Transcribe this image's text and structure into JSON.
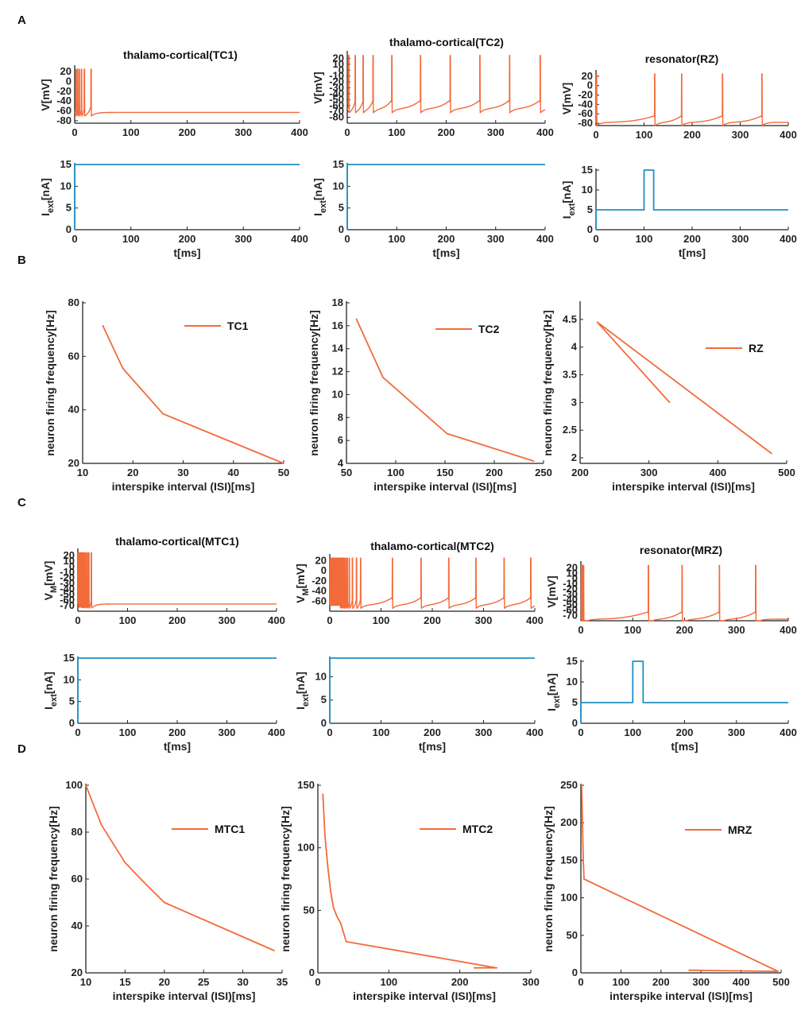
{
  "panel_labels": [
    "A",
    "B",
    "C",
    "D"
  ],
  "colors": {
    "voltage": "#f26b3a",
    "current": "#1f8fc4",
    "axis": "#222222"
  },
  "chart_data": [
    {
      "id": "A-V1",
      "type": "line",
      "title": "thalamo-cortical(TC1)",
      "ylabel": "V[mV]",
      "xlabel": "",
      "xlim": [
        0,
        400
      ],
      "ylim": [
        -85,
        30
      ],
      "xticks": [
        0,
        100,
        200,
        300,
        400
      ],
      "yticks": [
        20,
        0,
        -20,
        -40,
        -60,
        -80
      ],
      "spike_times": [
        2,
        5,
        8,
        12,
        17,
        29
      ],
      "rest_mV": -63
    },
    {
      "id": "A-V2",
      "type": "line",
      "title": "thalamo-cortical(TC2)",
      "ylabel": "V[mV]",
      "xlabel": "",
      "xlim": [
        0,
        400
      ],
      "ylim": [
        -90,
        30
      ],
      "xticks": [
        0,
        100,
        200,
        300,
        400
      ],
      "yticks": [
        20,
        10,
        0,
        -10,
        -20,
        -30,
        -40,
        -50,
        -60,
        -70,
        -80
      ],
      "spike_times": [
        3,
        16,
        32,
        52,
        90,
        148,
        208,
        268,
        328,
        390
      ],
      "rest_mV": -65
    },
    {
      "id": "A-V3",
      "type": "line",
      "title": "resonator(RZ)",
      "ylabel": "V[mV]",
      "xlabel": "",
      "xlim": [
        0,
        400
      ],
      "ylim": [
        -85,
        30
      ],
      "xticks": [
        0,
        100,
        200,
        300,
        400
      ],
      "yticks": [
        20,
        0,
        -20,
        -40,
        -60,
        -80
      ],
      "spike_times": [
        1,
        122,
        178,
        263,
        345
      ],
      "rest_mV": -78
    },
    {
      "id": "A-I1",
      "type": "line",
      "title": "",
      "ylabel": "Iext[nA]",
      "xlabel": "t[ms]",
      "xlim": [
        0,
        400
      ],
      "ylim": [
        0,
        15
      ],
      "xticks": [
        0,
        100,
        200,
        300,
        400
      ],
      "yticks": [
        0,
        5,
        10,
        15
      ],
      "x": [
        0,
        0,
        400
      ],
      "y": [
        0,
        15,
        15
      ]
    },
    {
      "id": "A-I2",
      "type": "line",
      "title": "",
      "ylabel": "Iext[nA]",
      "xlabel": "t[ms]",
      "xlim": [
        0,
        400
      ],
      "ylim": [
        0,
        15
      ],
      "xticks": [
        0,
        100,
        200,
        300,
        400
      ],
      "yticks": [
        0,
        5,
        10,
        15
      ],
      "x": [
        0,
        0,
        400
      ],
      "y": [
        0,
        15,
        15
      ]
    },
    {
      "id": "A-I3",
      "type": "line",
      "title": "",
      "ylabel": "Iext[nA]",
      "xlabel": "t[ms]",
      "xlim": [
        0,
        400
      ],
      "ylim": [
        0,
        15
      ],
      "xticks": [
        0,
        100,
        200,
        300,
        400
      ],
      "yticks": [
        0,
        5,
        10,
        15
      ],
      "x": [
        0,
        0,
        100,
        100,
        120,
        120,
        400
      ],
      "y": [
        0,
        5,
        5,
        15,
        15,
        5,
        5
      ]
    },
    {
      "id": "B1",
      "type": "line",
      "title": "",
      "ylabel": "neuron firing frequency[Hz]",
      "xlabel": "interspike interval (ISI)[ms]",
      "xlim": [
        10,
        50
      ],
      "ylim": [
        20,
        80
      ],
      "xticks": [
        10,
        20,
        30,
        40,
        50
      ],
      "yticks": [
        20,
        40,
        60,
        80
      ],
      "legend": "TC1",
      "x": [
        14,
        18,
        26,
        50
      ],
      "y": [
        71.5,
        55.5,
        38.5,
        20
      ]
    },
    {
      "id": "B2",
      "type": "line",
      "title": "",
      "ylabel": "neuron firing frequency[Hz]",
      "xlabel": "interspike interval (ISI)[ms]",
      "xlim": [
        50,
        250
      ],
      "ylim": [
        4,
        18
      ],
      "xticks": [
        50,
        100,
        150,
        200,
        250
      ],
      "yticks": [
        4,
        6,
        8,
        10,
        12,
        14,
        16,
        18
      ],
      "legend": "TC2",
      "x": [
        60,
        87,
        152,
        240
      ],
      "y": [
        16.6,
        11.5,
        6.6,
        4.2
      ]
    },
    {
      "id": "B3",
      "type": "line",
      "title": "",
      "ylabel": "neuron firing frequency[Hz]",
      "xlabel": "interspike interval (ISI)[ms]",
      "xlim": [
        200,
        500
      ],
      "ylim": [
        1.9,
        4.8
      ],
      "xticks": [
        200,
        300,
        400,
        500
      ],
      "yticks": [
        2,
        2.5,
        3,
        3.5,
        4,
        4.5
      ],
      "legend": "RZ",
      "x": [
        330,
        225,
        478
      ],
      "y": [
        3.0,
        4.45,
        2.08
      ]
    },
    {
      "id": "C-V1",
      "type": "line",
      "title": "thalamo-cortical(MTC1)",
      "ylabel": "VM[mV]",
      "xlabel": "",
      "xlim": [
        0,
        400
      ],
      "ylim": [
        -80,
        30
      ],
      "xticks": [
        0,
        100,
        200,
        300,
        400
      ],
      "yticks": [
        20,
        10,
        0,
        -10,
        -20,
        -30,
        -40,
        -50,
        -60,
        -70
      ],
      "spike_times": [
        1,
        2.5,
        4,
        5.5,
        7,
        9,
        11,
        13,
        16,
        19,
        22,
        27
      ],
      "rest_mV": -67
    },
    {
      "id": "C-V2",
      "type": "line",
      "title": "thalamo-cortical(MTC2)",
      "ylabel": "VM[mV]",
      "xlabel": "",
      "xlim": [
        0,
        400
      ],
      "ylim": [
        -80,
        30
      ],
      "xticks": [
        0,
        100,
        200,
        300,
        400
      ],
      "yticks": [
        20,
        0,
        -20,
        -40,
        -60
      ],
      "spike_times": [
        1,
        2,
        3,
        4,
        5,
        6,
        7,
        8,
        9,
        10,
        11,
        12,
        13,
        14,
        15,
        16,
        17,
        18,
        19,
        20,
        22,
        24,
        26,
        28,
        31,
        34,
        38,
        44,
        52,
        60,
        122,
        178,
        232,
        285,
        340,
        392
      ],
      "rest_mV": -67
    },
    {
      "id": "C-V3",
      "type": "line",
      "title": "resonator(MRZ)",
      "ylabel": "V[mV]",
      "xlabel": "",
      "xlim": [
        0,
        400
      ],
      "ylim": [
        -80,
        30
      ],
      "xticks": [
        0,
        100,
        200,
        300,
        400
      ],
      "yticks": [
        20,
        10,
        0,
        -10,
        -20,
        -30,
        -40,
        -50,
        -60,
        -70
      ],
      "spike_times": [
        1,
        3,
        5,
        130,
        195,
        267,
        337
      ],
      "rest_mV": -77
    },
    {
      "id": "C-I1",
      "type": "line",
      "title": "",
      "ylabel": "Iext[nA]",
      "xlabel": "t[ms]",
      "xlim": [
        0,
        400
      ],
      "ylim": [
        0,
        15
      ],
      "xticks": [
        0,
        100,
        200,
        300,
        400
      ],
      "yticks": [
        0,
        5,
        10,
        15
      ],
      "x": [
        0,
        0,
        400
      ],
      "y": [
        0,
        15,
        15
      ]
    },
    {
      "id": "C-I2",
      "type": "line",
      "title": "",
      "ylabel": "Iext[nA]",
      "xlabel": "t[ms]",
      "xlim": [
        0,
        400
      ],
      "ylim": [
        0,
        14
      ],
      "xticks": [
        0,
        100,
        200,
        300,
        400
      ],
      "yticks": [
        0,
        5,
        10
      ],
      "x": [
        0,
        0,
        400
      ],
      "y": [
        0,
        14,
        14
      ]
    },
    {
      "id": "C-I3",
      "type": "line",
      "title": "",
      "ylabel": "Iext[nA]",
      "xlabel": "t[ms]",
      "xlim": [
        0,
        400
      ],
      "ylim": [
        0,
        15
      ],
      "xticks": [
        0,
        100,
        200,
        300,
        400
      ],
      "yticks": [
        0,
        5,
        10,
        15
      ],
      "x": [
        0,
        0,
        100,
        100,
        120,
        120,
        400
      ],
      "y": [
        0,
        5,
        5,
        15,
        15,
        5,
        5
      ]
    },
    {
      "id": "D1",
      "type": "line",
      "title": "",
      "ylabel": "neuron firing frequency[Hz]",
      "xlabel": "interspike interval (ISI)[ms]",
      "xlim": [
        10,
        35
      ],
      "ylim": [
        20,
        100
      ],
      "xticks": [
        10,
        15,
        20,
        25,
        30,
        35
      ],
      "yticks": [
        20,
        40,
        60,
        80,
        100
      ],
      "legend": "MTC1",
      "x": [
        10,
        12,
        15,
        17,
        20,
        34
      ],
      "y": [
        100,
        83,
        67,
        60,
        50,
        29.5
      ]
    },
    {
      "id": "D2",
      "type": "line",
      "title": "",
      "ylabel": "neuron firing frequency[Hz]",
      "xlabel": "interspike interval (ISI)[ms]",
      "xlim": [
        0,
        300
      ],
      "ylim": [
        0,
        150
      ],
      "xticks": [
        0,
        100,
        200,
        300
      ],
      "yticks": [
        0,
        50,
        100,
        150
      ],
      "legend": "MTC2",
      "x": [
        7,
        10,
        14,
        18,
        22,
        27,
        32,
        40,
        252,
        220
      ],
      "y": [
        143,
        110,
        85,
        65,
        52,
        45,
        40,
        25,
        4,
        4
      ]
    },
    {
      "id": "D3",
      "type": "line",
      "title": "",
      "ylabel": "neuron firing frequency[Hz]",
      "xlabel": "interspike interval (ISI)[ms]",
      "xlim": [
        0,
        500
      ],
      "ylim": [
        0,
        250
      ],
      "xticks": [
        0,
        100,
        200,
        300,
        400,
        500
      ],
      "yticks": [
        0,
        50,
        100,
        150,
        200,
        250
      ],
      "legend": "MRZ",
      "x": [
        2,
        4,
        6,
        8,
        492,
        270
      ],
      "y": [
        250,
        200,
        150,
        125,
        2,
        3.5
      ]
    }
  ]
}
